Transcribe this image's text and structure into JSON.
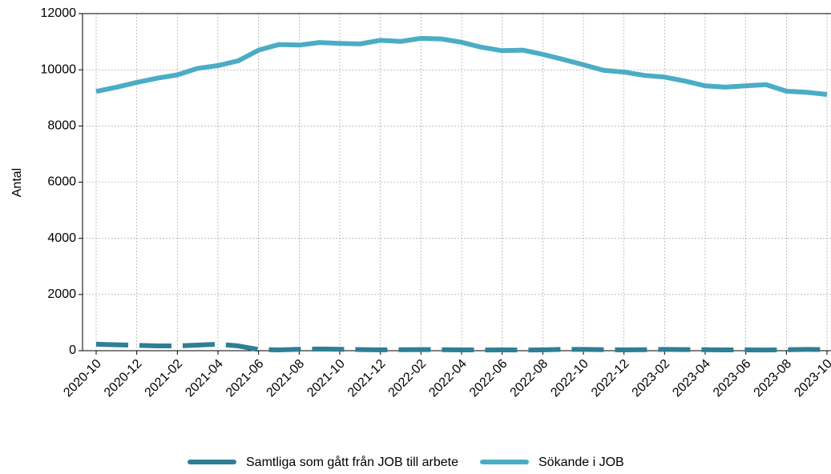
{
  "chart_data": {
    "type": "line",
    "y_label": "Antal",
    "categories": [
      "2020-10",
      null,
      "2020-12",
      null,
      "2021-02",
      null,
      "2021-04",
      null,
      "2021-06",
      null,
      "2021-08",
      null,
      "2021-10",
      null,
      "2021-12",
      null,
      "2022-02",
      null,
      "2022-04",
      null,
      "2022-06",
      null,
      "2022-08",
      null,
      "2022-10",
      null,
      "2022-12",
      null,
      "2023-02",
      null,
      "2023-04",
      null,
      "2023-06",
      null,
      "2023-08",
      null,
      "2023-10"
    ],
    "series": [
      {
        "name": "Samtliga som gått från JOB till arbete",
        "color": "#2e7f95",
        "dashed": true,
        "values": [
          230,
          210,
          190,
          170,
          170,
          200,
          230,
          170,
          40,
          30,
          50,
          60,
          50,
          40,
          30,
          35,
          40,
          35,
          30,
          25,
          30,
          25,
          30,
          50,
          45,
          35,
          30,
          35,
          45,
          40,
          35,
          30,
          30,
          25,
          35,
          45,
          40
        ]
      },
      {
        "name": "Sökande i JOB",
        "color": "#4bacc6",
        "dashed": false,
        "values": [
          9230,
          9380,
          9550,
          9700,
          9820,
          10050,
          10150,
          10320,
          10700,
          10900,
          10880,
          10970,
          10940,
          10920,
          11050,
          11010,
          11120,
          11100,
          10980,
          10800,
          10680,
          10700,
          10550,
          10370,
          10180,
          9980,
          9920,
          9800,
          9740,
          9600,
          9430,
          9380,
          9430,
          9470,
          9240,
          9200,
          9120
        ]
      }
    ],
    "ylim": [
      0,
      12000
    ],
    "yticks": [
      0,
      2000,
      4000,
      6000,
      8000,
      10000,
      12000
    ],
    "grid": true,
    "legend": "bottom"
  }
}
